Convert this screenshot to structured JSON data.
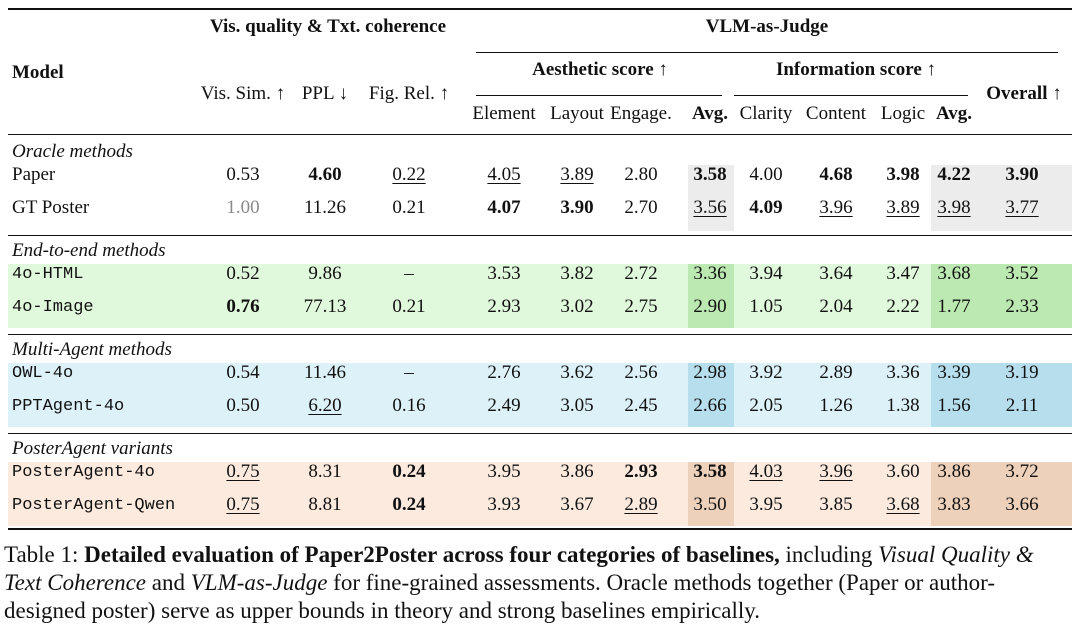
{
  "header": {
    "model": "Model",
    "group_vis": "Vis. quality & Txt. coherence",
    "group_vlm": "VLM-as-Judge",
    "aesthetic": "Aesthetic score ↑",
    "information": "Information score ↑",
    "overall": "Overall ↑",
    "cols": [
      "Vis. Sim. ↑",
      "PPL ↓",
      "Fig. Rel. ↑",
      "Element",
      "Layout",
      "Engage.",
      "Avg.",
      "Clarity",
      "Content",
      "Logic",
      "Avg."
    ]
  },
  "sections": [
    {
      "title": "Oracle methods",
      "color": "#ececec",
      "rows": [
        {
          "model": "Paper",
          "mono": false,
          "values": [
            "0.53",
            "4.60",
            "0.22",
            "4.05",
            "3.89",
            "2.80",
            "3.58",
            "4.00",
            "4.68",
            "3.98",
            "4.22",
            "3.90"
          ],
          "styles": [
            "",
            "b",
            "u",
            "u",
            "u",
            "",
            "b",
            "",
            "b",
            "b",
            "b",
            "b"
          ]
        },
        {
          "model": "GT Poster",
          "mono": false,
          "values": [
            "1.00",
            "11.26",
            "0.21",
            "4.07",
            "3.90",
            "2.70",
            "3.56",
            "4.09",
            "3.96",
            "3.89",
            "3.98",
            "3.77"
          ],
          "styles": [
            "g",
            "",
            "",
            "b",
            "b",
            "",
            "u",
            "b",
            "u",
            "u",
            "u",
            "u"
          ]
        }
      ]
    },
    {
      "title": "End-to-end methods",
      "color": "#d6f5cf",
      "rows": [
        {
          "model": "4o-HTML",
          "mono": true,
          "values": [
            "0.52",
            "9.86",
            "–",
            "3.53",
            "3.82",
            "2.72",
            "3.36",
            "3.94",
            "3.64",
            "3.47",
            "3.68",
            "3.52"
          ],
          "styles": [
            "",
            "",
            "",
            "",
            "",
            "",
            "",
            "",
            "",
            "",
            "",
            ""
          ]
        },
        {
          "model": "4o-Image",
          "mono": true,
          "values": [
            "0.76",
            "77.13",
            "0.21",
            "2.93",
            "3.02",
            "2.75",
            "2.90",
            "1.05",
            "2.04",
            "2.22",
            "1.77",
            "2.33"
          ],
          "styles": [
            "b",
            "",
            "",
            "",
            "",
            "",
            "",
            "",
            "",
            "",
            "",
            ""
          ]
        }
      ]
    },
    {
      "title": "Multi-Agent methods",
      "color": "#d2ecf7",
      "rows": [
        {
          "model": "OWL-4o",
          "mono": true,
          "values": [
            "0.54",
            "11.46",
            "–",
            "2.76",
            "3.62",
            "2.56",
            "2.98",
            "3.92",
            "2.89",
            "3.36",
            "3.39",
            "3.19"
          ],
          "styles": [
            "",
            "",
            "",
            "",
            "",
            "",
            "",
            "",
            "",
            "",
            "",
            ""
          ]
        },
        {
          "model": "PPTAgent-4o",
          "mono": true,
          "values": [
            "0.50",
            "6.20",
            "0.16",
            "2.49",
            "3.05",
            "2.45",
            "2.66",
            "2.05",
            "1.26",
            "1.38",
            "1.56",
            "2.11"
          ],
          "styles": [
            "",
            "u",
            "",
            "",
            "",
            "",
            "",
            "",
            "",
            "",
            "",
            ""
          ]
        }
      ]
    },
    {
      "title": "PosterAgent variants",
      "color": "#fbe3d4",
      "rows": [
        {
          "model": "PosterAgent-4o",
          "mono": true,
          "values": [
            "0.75",
            "8.31",
            "0.24",
            "3.95",
            "3.86",
            "2.93",
            "3.58",
            "4.03",
            "3.96",
            "3.60",
            "3.86",
            "3.72"
          ],
          "styles": [
            "u",
            "",
            "b",
            "",
            "",
            "b",
            "b",
            "u",
            "u",
            "",
            "",
            ""
          ]
        },
        {
          "model": "PosterAgent-Qwen",
          "mono": true,
          "values": [
            "0.75",
            "8.81",
            "0.24",
            "3.93",
            "3.67",
            "2.89",
            "3.50",
            "3.95",
            "3.85",
            "3.68",
            "3.83",
            "3.66"
          ],
          "styles": [
            "u",
            "",
            "b",
            "",
            "",
            "u",
            "",
            "",
            "",
            "u",
            "",
            ""
          ]
        }
      ]
    }
  ],
  "caption": {
    "label": "Table 1: ",
    "bold": "Detailed evaluation of Paper2Poster across four categories of baselines,",
    "part1": " including ",
    "italic1": "Visual Quality & Text Coherence",
    "part2": " and ",
    "italic2": "VLM-as-Judge",
    "part3": " for fine-grained assessments. Oracle methods together (Paper or author-designed poster) serve as upper bounds in theory and strong baselines empirically."
  }
}
